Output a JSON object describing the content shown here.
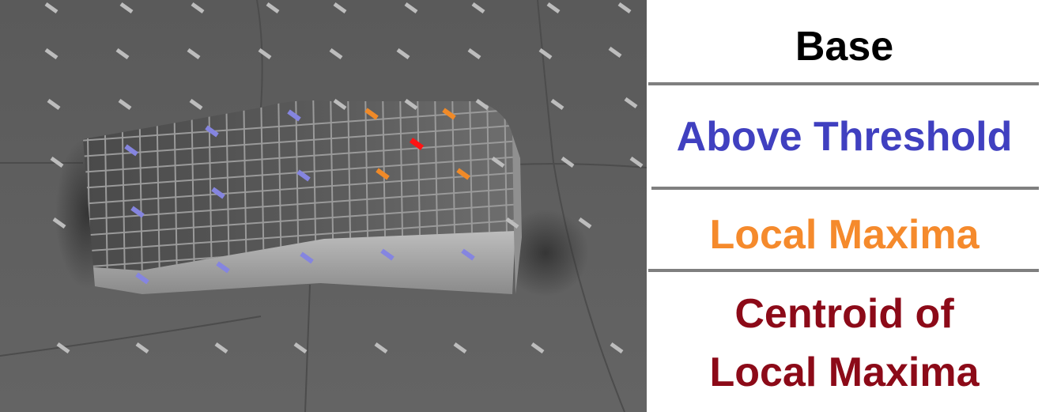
{
  "legend": {
    "items": [
      {
        "label": "Base",
        "color": "#000000"
      },
      {
        "label": "Above Threshold",
        "color": "#4040c0"
      },
      {
        "label": "Local Maxima",
        "color": "#f58a2c"
      },
      {
        "label": "Centroid of",
        "label_line2": "Local Maxima",
        "color": "#8c0a18"
      }
    ]
  },
  "scene": {
    "colors": {
      "background": "#5e5e5e",
      "block_top": "#585858",
      "block_front": "#a8a8a8",
      "grid_line": "#9a9a9a",
      "base_marker": "#bdbdbd",
      "above_threshold_marker": "#8585e0",
      "local_maxima_marker": "#f08a28",
      "centroid_marker": "#ff1414"
    }
  }
}
